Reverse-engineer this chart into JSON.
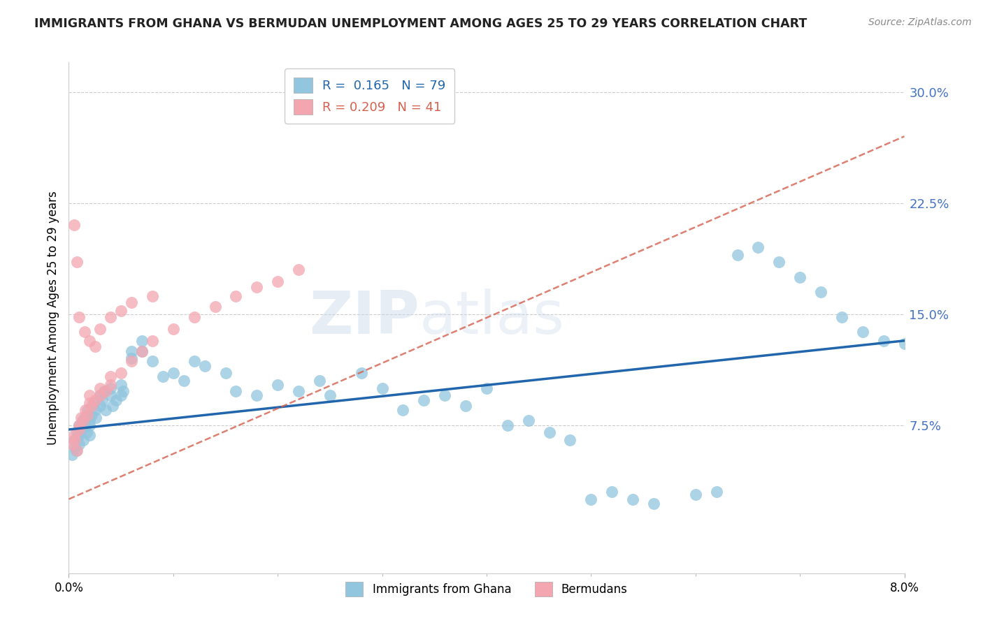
{
  "title": "IMMIGRANTS FROM GHANA VS BERMUDAN UNEMPLOYMENT AMONG AGES 25 TO 29 YEARS CORRELATION CHART",
  "source": "Source: ZipAtlas.com",
  "ylabel": "Unemployment Among Ages 25 to 29 years",
  "y_ticks": [
    0.0,
    0.075,
    0.15,
    0.225,
    0.3
  ],
  "y_tick_labels": [
    "",
    "7.5%",
    "15.0%",
    "22.5%",
    "30.0%"
  ],
  "x_range": [
    0.0,
    0.08
  ],
  "y_range": [
    -0.025,
    0.32
  ],
  "ghana_R": 0.165,
  "ghana_N": 79,
  "bermuda_R": 0.209,
  "bermuda_N": 41,
  "ghana_color": "#92C5DE",
  "bermuda_color": "#F4A6B0",
  "ghana_line_color": "#2166AC",
  "bermuda_line_color": "#D6604D",
  "ghana_line_y0": 0.072,
  "ghana_line_y1": 0.132,
  "bermuda_line_y0": 0.025,
  "bermuda_line_y1": 0.27,
  "ghana_scatter_x": [
    0.0003,
    0.0005,
    0.0006,
    0.0007,
    0.0008,
    0.0009,
    0.001,
    0.001,
    0.001,
    0.0012,
    0.0013,
    0.0014,
    0.0015,
    0.0016,
    0.0017,
    0.0018,
    0.0019,
    0.002,
    0.002,
    0.002,
    0.0022,
    0.0024,
    0.0025,
    0.0026,
    0.003,
    0.003,
    0.0032,
    0.0034,
    0.0035,
    0.004,
    0.004,
    0.0042,
    0.0045,
    0.005,
    0.005,
    0.0052,
    0.006,
    0.006,
    0.007,
    0.007,
    0.008,
    0.009,
    0.01,
    0.011,
    0.012,
    0.013,
    0.015,
    0.016,
    0.018,
    0.02,
    0.022,
    0.024,
    0.025,
    0.028,
    0.03,
    0.032,
    0.034,
    0.036,
    0.038,
    0.04,
    0.042,
    0.044,
    0.046,
    0.048,
    0.05,
    0.052,
    0.054,
    0.056,
    0.06,
    0.062,
    0.064,
    0.066,
    0.068,
    0.07,
    0.072,
    0.074,
    0.076,
    0.078,
    0.08
  ],
  "ghana_scatter_y": [
    0.055,
    0.065,
    0.06,
    0.058,
    0.07,
    0.068,
    0.075,
    0.068,
    0.062,
    0.072,
    0.078,
    0.065,
    0.08,
    0.075,
    0.07,
    0.085,
    0.082,
    0.075,
    0.068,
    0.078,
    0.082,
    0.09,
    0.085,
    0.08,
    0.088,
    0.095,
    0.092,
    0.098,
    0.085,
    0.095,
    0.1,
    0.088,
    0.092,
    0.095,
    0.102,
    0.098,
    0.125,
    0.12,
    0.125,
    0.132,
    0.118,
    0.108,
    0.11,
    0.105,
    0.118,
    0.115,
    0.11,
    0.098,
    0.095,
    0.102,
    0.098,
    0.105,
    0.095,
    0.11,
    0.1,
    0.085,
    0.092,
    0.095,
    0.088,
    0.1,
    0.075,
    0.078,
    0.07,
    0.065,
    0.025,
    0.03,
    0.025,
    0.022,
    0.028,
    0.03,
    0.19,
    0.195,
    0.185,
    0.175,
    0.165,
    0.148,
    0.138,
    0.132,
    0.13
  ],
  "bermuda_scatter_x": [
    0.0003,
    0.0005,
    0.0006,
    0.0008,
    0.001,
    0.001,
    0.0012,
    0.0014,
    0.0016,
    0.0018,
    0.002,
    0.002,
    0.0022,
    0.0025,
    0.003,
    0.003,
    0.0035,
    0.004,
    0.004,
    0.005,
    0.006,
    0.007,
    0.008,
    0.01,
    0.012,
    0.014,
    0.016,
    0.018,
    0.02,
    0.022,
    0.0005,
    0.0008,
    0.001,
    0.0015,
    0.002,
    0.0025,
    0.003,
    0.004,
    0.005,
    0.006,
    0.008
  ],
  "bermuda_scatter_y": [
    0.062,
    0.068,
    0.065,
    0.058,
    0.075,
    0.072,
    0.08,
    0.078,
    0.085,
    0.082,
    0.09,
    0.095,
    0.088,
    0.092,
    0.1,
    0.095,
    0.098,
    0.102,
    0.108,
    0.11,
    0.118,
    0.125,
    0.132,
    0.14,
    0.148,
    0.155,
    0.162,
    0.168,
    0.172,
    0.18,
    0.21,
    0.185,
    0.148,
    0.138,
    0.132,
    0.128,
    0.14,
    0.148,
    0.152,
    0.158,
    0.162
  ]
}
